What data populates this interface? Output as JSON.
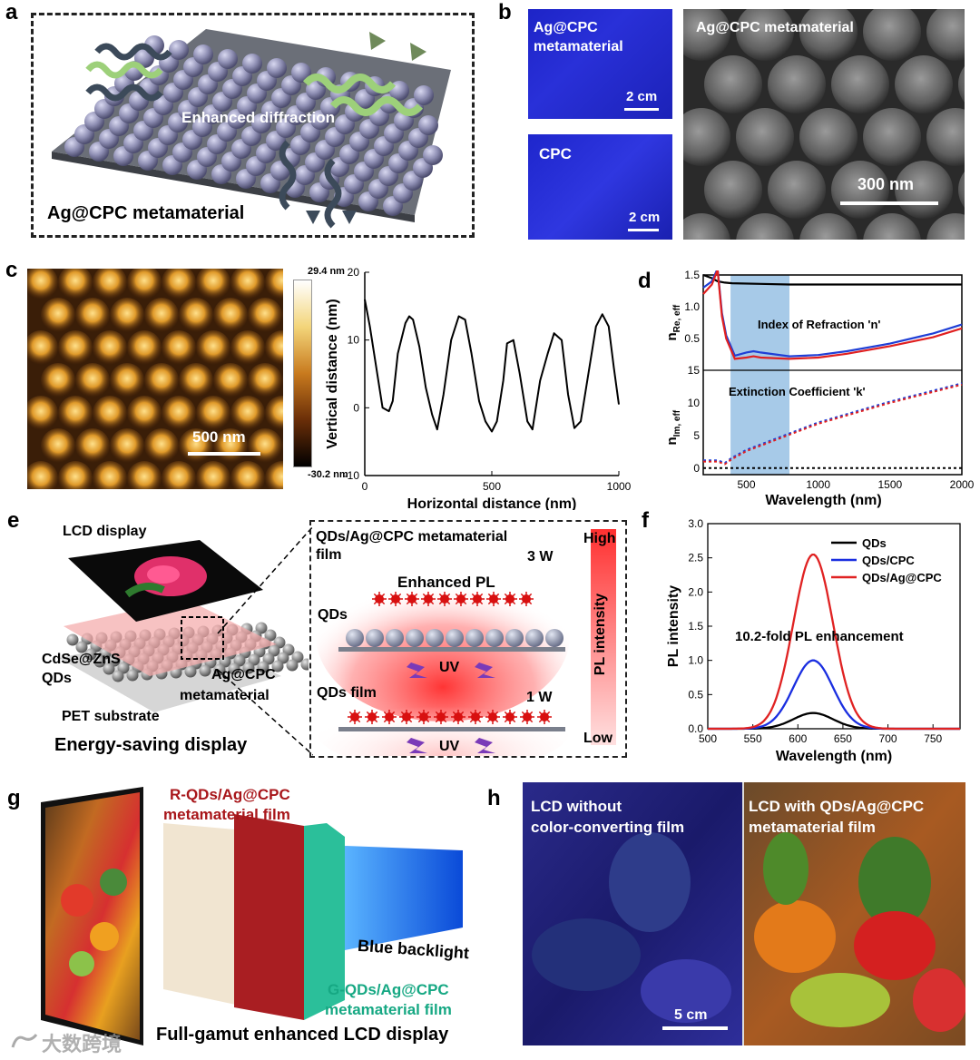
{
  "labels": {
    "a": "a",
    "b": "b",
    "c": "c",
    "d": "d",
    "e": "e",
    "f": "f",
    "g": "g",
    "h": "h"
  },
  "panel_a": {
    "title": "Ag@CPC metamaterial",
    "annotation": "Enhanced diffraction"
  },
  "panel_b": {
    "top_left_caption": "Ag@CPC\nmetamaterial",
    "top_left_scale": "2 cm",
    "bottom_left_caption": "CPC",
    "bottom_left_scale": "2 cm",
    "sem_caption": "Ag@CPC metamaterial",
    "sem_scale": "300 nm"
  },
  "panel_c": {
    "afm_scale": "500 nm",
    "colorbar_max": "29.4 nm",
    "colorbar_min": "-30.2 nm"
  },
  "panel_d": {
    "top_label": "Index of Refraction 'n'",
    "bottom_label": "Extinction Coefficient 'k'",
    "top_ylabel": "n",
    "top_ylabel_sub": "Re, eff",
    "bottom_ylabel": "n",
    "bottom_ylabel_sub": "Im, eff",
    "xlabel": "Wavelength (nm)"
  },
  "panel_e": {
    "lcd": "LCD display",
    "qds_a": "CdSe@ZnS",
    "qds_b": "QDs",
    "agcpc_a": "Ag@CPC",
    "agcpc_b": "metamaterial",
    "pet": "PET substrate",
    "caption": "Energy-saving display",
    "film_top_a": "QDs/Ag@CPC metamaterial",
    "film_top_b": "film",
    "watt_top": "3 W",
    "enhanced": "Enhanced PL",
    "qds_label": "QDs",
    "uv_top": "UV",
    "film_bottom": "QDs film",
    "watt_bottom": "1 W",
    "uv_bottom": "UV",
    "high": "High",
    "low": "Low",
    "intensity": "PL intensity"
  },
  "panel_g": {
    "red_film_a": "R-QDs/Ag@CPC",
    "red_film_b": "metamaterial film",
    "green_film_a": "G-QDs/Ag@CPC",
    "green_film_b": "metamaterial film",
    "backlight": "Blue backlight",
    "caption": "Full-gamut enhanced LCD display"
  },
  "panel_h": {
    "left_a": "LCD without",
    "left_b": "color-converting film",
    "right_a": "LCD with QDs/Ag@CPC",
    "right_b": "metamaterial film",
    "scale": "5 cm"
  },
  "watermark": "大数跨境",
  "chart_data": [
    {
      "type": "line",
      "panel": "c",
      "xlabel": "Horizontal distance (nm)",
      "ylabel": "Vertical distance (nm)",
      "xlim": [
        0,
        1000
      ],
      "ylim": [
        -10,
        20
      ],
      "xticks": [
        0,
        500,
        1000
      ],
      "yticks": [
        -10,
        0,
        10,
        20
      ],
      "series": [
        {
          "x": [
            0,
            20,
            45,
            70,
            95,
            110,
            130,
            160,
            175,
            190,
            215,
            240,
            265,
            285,
            310,
            340,
            370,
            395,
            420,
            450,
            475,
            500,
            520,
            545,
            560,
            585,
            610,
            640,
            660,
            690,
            720,
            745,
            775,
            800,
            825,
            850,
            880,
            910,
            935,
            960,
            980,
            1000
          ],
          "y": [
            16,
            12,
            6,
            0,
            -0.5,
            1,
            8,
            12.5,
            13.5,
            13,
            9,
            3,
            -1,
            -3.2,
            2,
            10,
            13.5,
            13,
            8,
            1,
            -2,
            -3.5,
            -2,
            4,
            9.5,
            10,
            5,
            -2,
            -3.2,
            4,
            8,
            11,
            10,
            2,
            -3,
            -2,
            5,
            12,
            13.8,
            12,
            6,
            0.5
          ]
        }
      ]
    },
    {
      "type": "line",
      "panel": "d-top",
      "xlabel": "Wavelength (nm)",
      "ylabel": "n_Re,eff",
      "xlim": [
        200,
        2000
      ],
      "ylim": [
        0,
        1.5
      ],
      "yticks": [
        0.5,
        1.0,
        1.5
      ],
      "series": [
        {
          "color": "#000000",
          "x": [
            200,
            260,
            300,
            350,
            400,
            600,
            800,
            1000,
            1500,
            2000
          ],
          "y": [
            1.5,
            1.45,
            1.4,
            1.38,
            1.37,
            1.36,
            1.35,
            1.35,
            1.35,
            1.35
          ]
        },
        {
          "color": "#1f3fd6",
          "x": [
            200,
            260,
            300,
            330,
            360,
            420,
            500,
            550,
            600,
            800,
            1000,
            1200,
            1500,
            1800,
            2000
          ],
          "y": [
            1.3,
            1.4,
            1.6,
            0.9,
            0.55,
            0.23,
            0.28,
            0.3,
            0.28,
            0.22,
            0.24,
            0.3,
            0.42,
            0.58,
            0.72
          ]
        },
        {
          "color": "#e02020",
          "x": [
            200,
            260,
            300,
            330,
            360,
            420,
            500,
            550,
            600,
            800,
            1000,
            1200,
            1500,
            1800,
            2000
          ],
          "y": [
            1.2,
            1.35,
            1.58,
            0.85,
            0.5,
            0.18,
            0.2,
            0.22,
            0.2,
            0.18,
            0.2,
            0.26,
            0.38,
            0.52,
            0.66
          ]
        }
      ]
    },
    {
      "type": "line",
      "panel": "d-bottom",
      "xlabel": "Wavelength (nm)",
      "ylabel": "n_Im,eff",
      "xlim": [
        200,
        2000
      ],
      "ylim": [
        -1,
        15
      ],
      "xticks": [
        500,
        1000,
        1500,
        2000
      ],
      "yticks": [
        0,
        5,
        10,
        15
      ],
      "series": [
        {
          "color": "#000000",
          "dash": true,
          "x": [
            200,
            2000
          ],
          "y": [
            0,
            0
          ]
        },
        {
          "color": "#1f3fd6",
          "dash": true,
          "x": [
            200,
            300,
            350,
            400,
            500,
            1000,
            1500,
            2000
          ],
          "y": [
            1.2,
            1.2,
            0.8,
            1.6,
            2.8,
            7.0,
            10.2,
            13.0
          ]
        },
        {
          "color": "#e02020",
          "dash": true,
          "x": [
            200,
            300,
            350,
            400,
            500,
            1000,
            1500,
            2000
          ],
          "y": [
            1.0,
            1.0,
            0.6,
            1.4,
            2.6,
            6.8,
            10.0,
            12.8
          ]
        }
      ]
    },
    {
      "type": "line",
      "panel": "f",
      "xlabel": "Wavelength (nm)",
      "ylabel": "PL intensity",
      "xlim": [
        500,
        780
      ],
      "ylim": [
        0,
        3.0
      ],
      "xticks": [
        500,
        550,
        600,
        650,
        700,
        750
      ],
      "yticks": [
        0.0,
        0.5,
        1.0,
        1.5,
        2.0,
        2.5,
        3.0
      ],
      "annotation": "10.2-fold PL enhancement",
      "legend_position": "top-right",
      "series": [
        {
          "name": "QDs",
          "color": "#000000",
          "peak": 617,
          "amplitude": 0.23,
          "width": 22
        },
        {
          "name": "QDs/CPC",
          "color": "#1a2ee0",
          "peak": 617,
          "amplitude": 1.0,
          "width": 22
        },
        {
          "name": "QDs/Ag@CPC",
          "color": "#e02222",
          "peak": 617,
          "amplitude": 2.55,
          "width": 22
        }
      ]
    }
  ]
}
